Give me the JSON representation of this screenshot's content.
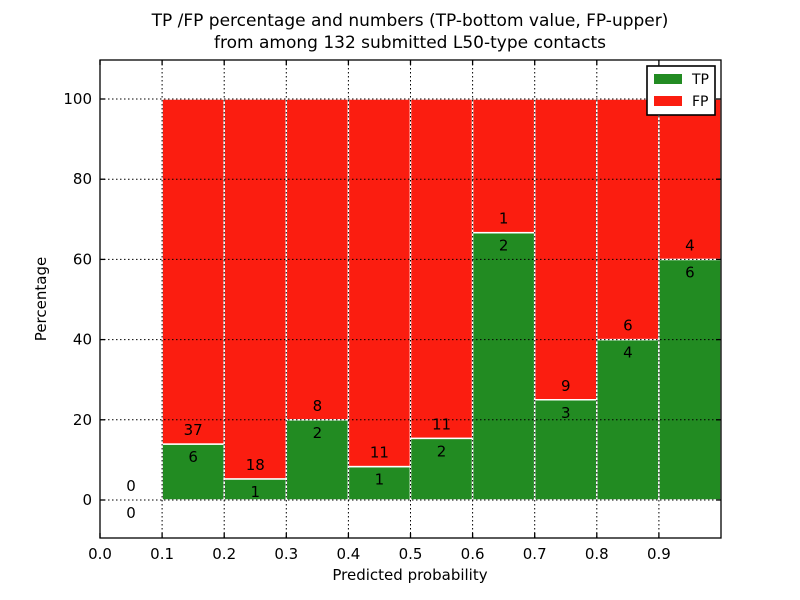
{
  "chart_data": {
    "type": "bar",
    "stacked": true,
    "title_line1": "TP /FP percentage and numbers (TP-bottom value, FP-upper)",
    "title_line2": "from among 132 submitted L50-type contacts",
    "xlabel": "Predicted probability",
    "ylabel": "Percentage",
    "total_contacts": 132,
    "xlim": [
      0.0,
      1.0
    ],
    "ylim": [
      -9.5,
      109.7
    ],
    "xtick_values": [
      0.0,
      0.1,
      0.2,
      0.3,
      0.4,
      0.5,
      0.6,
      0.7,
      0.8,
      0.9
    ],
    "xtick_labels": [
      "0.0",
      "0.1",
      "0.2",
      "0.3",
      "0.4",
      "0.5",
      "0.6",
      "0.7",
      "0.8",
      "0.9"
    ],
    "ytick_values": [
      0,
      20,
      40,
      60,
      80,
      100
    ],
    "ytick_labels": [
      "0",
      "20",
      "40",
      "60",
      "80",
      "100"
    ],
    "grid": "dotted",
    "colors": {
      "tp": "#228b22",
      "fp": "#fb1d10",
      "bar_edge": "#ffffff",
      "grid": "#000000",
      "spine": "#000000",
      "text": "#000000"
    },
    "legend": {
      "position": "upper right",
      "items": [
        {
          "label": "TP",
          "color": "#228b22"
        },
        {
          "label": "FP",
          "color": "#fb1d10"
        }
      ]
    },
    "bins": [
      {
        "range": [
          0.0,
          0.1
        ],
        "tp": 0,
        "fp": 0,
        "tp_pct": 0.0,
        "fp_pct": 0.0,
        "tp_label": "0",
        "fp_label": "0"
      },
      {
        "range": [
          0.1,
          0.2
        ],
        "tp": 6,
        "fp": 37,
        "tp_pct": 13.95,
        "fp_pct": 86.05,
        "tp_label": "6",
        "fp_label": "37"
      },
      {
        "range": [
          0.2,
          0.3
        ],
        "tp": 1,
        "fp": 18,
        "tp_pct": 5.26,
        "fp_pct": 94.74,
        "tp_label": "1",
        "fp_label": "18"
      },
      {
        "range": [
          0.3,
          0.4
        ],
        "tp": 2,
        "fp": 8,
        "tp_pct": 20.0,
        "fp_pct": 80.0,
        "tp_label": "2",
        "fp_label": "8"
      },
      {
        "range": [
          0.4,
          0.5
        ],
        "tp": 1,
        "fp": 11,
        "tp_pct": 8.33,
        "fp_pct": 91.67,
        "tp_label": "1",
        "fp_label": "11"
      },
      {
        "range": [
          0.5,
          0.6
        ],
        "tp": 2,
        "fp": 11,
        "tp_pct": 15.38,
        "fp_pct": 84.62,
        "tp_label": "2",
        "fp_label": "11"
      },
      {
        "range": [
          0.6,
          0.7
        ],
        "tp": 2,
        "fp": 1,
        "tp_pct": 66.67,
        "fp_pct": 33.33,
        "tp_label": "2",
        "fp_label": "1"
      },
      {
        "range": [
          0.7,
          0.8
        ],
        "tp": 3,
        "fp": 9,
        "tp_pct": 25.0,
        "fp_pct": 75.0,
        "tp_label": "3",
        "fp_label": "9"
      },
      {
        "range": [
          0.8,
          0.9
        ],
        "tp": 4,
        "fp": 6,
        "tp_pct": 40.0,
        "fp_pct": 60.0,
        "tp_label": "4",
        "fp_label": "6"
      },
      {
        "range": [
          0.9,
          1.0
        ],
        "tp": 6,
        "fp": 4,
        "tp_pct": 60.0,
        "fp_pct": 40.0,
        "tp_label": "6",
        "fp_label": "4"
      }
    ]
  }
}
